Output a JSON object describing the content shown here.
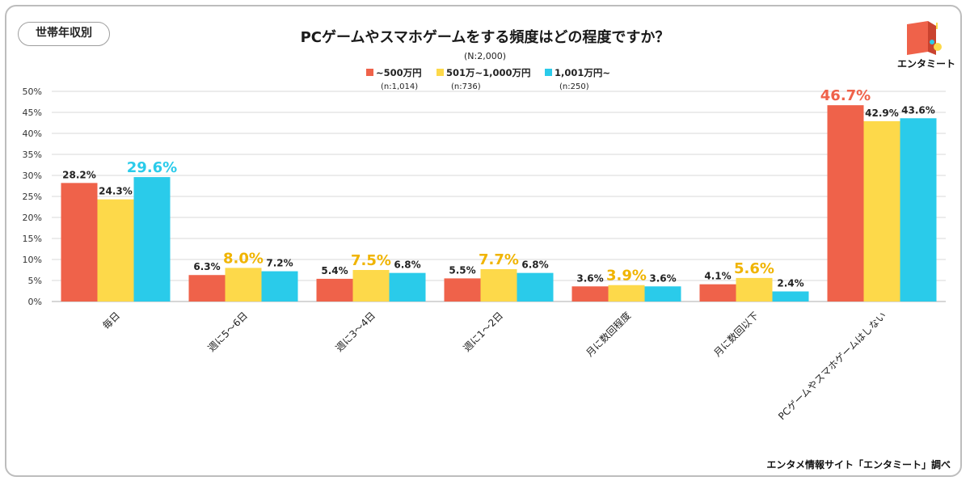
{
  "tag": "世帯年収別",
  "title": "PCゲームやスマホゲームをする頻度はどの程度ですか？",
  "sample_label": "(N:2,000)",
  "credit": "エンタメ情報サイト「エンタミート」調べ",
  "logo": {
    "text": "エンタミート",
    "icon": "entameet-logo-icon"
  },
  "colors": {
    "s1": "#ef624a",
    "s2": "#fdd94a",
    "s3": "#2acbea",
    "s2_hl": "#f0b400",
    "grid": "#d9d9d9",
    "axis": "#bdbdbd"
  },
  "legend": [
    {
      "name": "~500万円",
      "sub": "(n:1,014)"
    },
    {
      "name": "501万~1,000万円",
      "sub": "(n:736)"
    },
    {
      "name": "1,001万円~",
      "sub": "(n:250)"
    }
  ],
  "chart_data": {
    "type": "bar",
    "title": "PCゲームやスマホゲームをする頻度はどの程度ですか？",
    "ylim": [
      0,
      50
    ],
    "yticks": [
      "0%",
      "5%",
      "10%",
      "15%",
      "20%",
      "25%",
      "30%",
      "35%",
      "40%",
      "45%",
      "50%"
    ],
    "categories": [
      "毎日",
      "週に5～6日",
      "週に3～4日",
      "週に1～2日",
      "月に数回程度",
      "月に数回以下",
      "PCゲームやスマホゲームはしない"
    ],
    "series": [
      {
        "name": "~500万円",
        "values": [
          28.2,
          6.3,
          5.4,
          5.5,
          3.6,
          4.1,
          46.7
        ],
        "labels": [
          "28.2%",
          "6.3%",
          "5.4%",
          "5.5%",
          "3.6%",
          "4.1%",
          "46.7%"
        ]
      },
      {
        "name": "501万~1,000万円",
        "values": [
          24.3,
          8.0,
          7.5,
          7.7,
          3.9,
          5.6,
          42.9
        ],
        "labels": [
          "24.3%",
          "8.0%",
          "7.5%",
          "7.7%",
          "3.9%",
          "5.6%",
          "42.9%"
        ]
      },
      {
        "name": "1,001万円~",
        "values": [
          29.6,
          7.2,
          6.8,
          6.8,
          3.6,
          2.4,
          43.6
        ],
        "labels": [
          "29.6%",
          "7.2%",
          "6.8%",
          "6.8%",
          "3.6%",
          "2.4%",
          "43.6%"
        ]
      }
    ],
    "highlight_series": [
      2,
      1,
      1,
      1,
      1,
      1,
      0
    ]
  }
}
